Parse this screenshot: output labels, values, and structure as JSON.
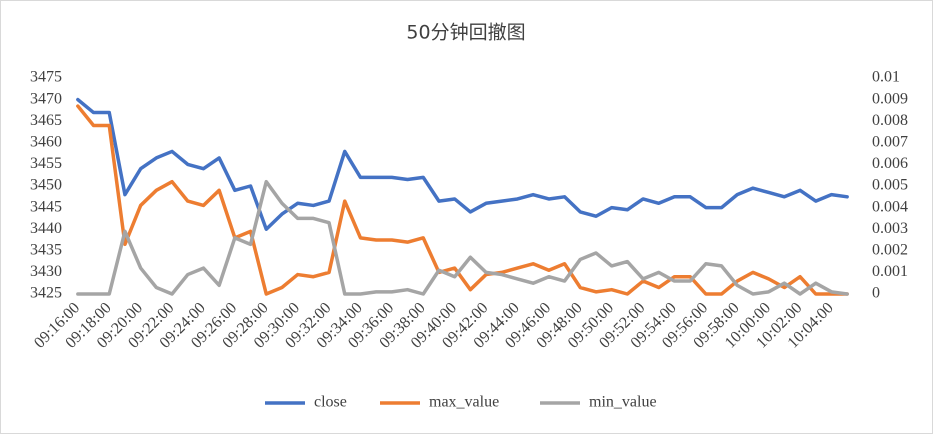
{
  "chart_data": {
    "type": "line",
    "title": "50分钟回撤图",
    "categories": [
      "09:16:00",
      null,
      "09:18:00",
      null,
      "09:20:00",
      null,
      "09:22:00",
      null,
      "09:24:00",
      null,
      "09:26:00",
      null,
      "09:28:00",
      null,
      "09:30:00",
      null,
      "09:32:00",
      null,
      "09:34:00",
      null,
      "09:36:00",
      null,
      "09:38:00",
      null,
      "09:40:00",
      null,
      "09:42:00",
      null,
      "09:44:00",
      null,
      "09:46:00",
      null,
      "09:48:00",
      null,
      "09:50:00",
      null,
      "09:52:00",
      null,
      "09:54:00",
      null,
      "09:56:00",
      null,
      "09:58:00",
      null,
      "10:00:00",
      null,
      "10:02:00",
      null,
      "10:04:00",
      null
    ],
    "series": [
      {
        "name": "close",
        "color": "#4472c4",
        "values": [
          3470,
          3467,
          3467,
          3448,
          3454,
          3456.5,
          3458,
          3455,
          3454,
          3456.5,
          3449,
          3450,
          3440,
          3443.5,
          3446,
          3445.5,
          3446.5,
          3458,
          3452,
          3452,
          3452,
          3451.5,
          3452,
          3446.5,
          3447,
          3444,
          3446,
          3446.5,
          3447,
          3448,
          3447,
          3447.5,
          3444,
          3443,
          3445,
          3444.5,
          3447,
          3446,
          3447.5,
          3447.5,
          3445,
          3445,
          3448,
          3449.5,
          3448.5,
          3447.5,
          3449,
          3446.5,
          3448,
          3447.5
        ]
      },
      {
        "name": "max_value",
        "color": "#ed7d31",
        "values": [
          3468.5,
          3464,
          3464,
          3436.5,
          3445.5,
          3449,
          3451,
          3446.5,
          3445.5,
          3449,
          3438,
          3439.5,
          3425,
          3426.5,
          3429.5,
          3429,
          3430,
          3446.5,
          3438,
          3437.5,
          3437.5,
          3437,
          3438,
          3430,
          3431,
          3426,
          3429.5,
          3430,
          3431,
          3432,
          3430.5,
          3432,
          3426.5,
          3425.5,
          3426,
          3425,
          3428,
          3426.5,
          3429,
          3429,
          3425,
          3425,
          3428,
          3430,
          3428.5,
          3426.5,
          3429,
          3425,
          3425,
          3425
        ]
      },
      {
        "name": "min_value",
        "color": "#a5a5a5",
        "axis": "y2",
        "values": [
          0,
          0,
          0,
          0.0029,
          0.0012,
          0.0003,
          0,
          0.0009,
          0.0012,
          0.0004,
          0.0026,
          0.0023,
          0.0052,
          0.0042,
          0.0035,
          0.0035,
          0.0033,
          0,
          0,
          0.0001,
          0.0001,
          0.0002,
          0,
          0.0011,
          0.0008,
          0.0017,
          0.001,
          0.0009,
          0.0007,
          0.0005,
          0.0008,
          0.0006,
          0.0016,
          0.0019,
          0.0013,
          0.0015,
          0.0007,
          0.001,
          0.0006,
          0.0006,
          0.0014,
          0.0013,
          0.0004,
          0,
          0.0001,
          0.0005,
          0,
          0.0005,
          0.0001,
          0
        ]
      }
    ],
    "ylim": [
      3425,
      3475
    ],
    "yticks": [
      3425,
      3430,
      3435,
      3440,
      3445,
      3450,
      3455,
      3460,
      3465,
      3470,
      3475
    ],
    "y2lim": [
      0,
      0.01
    ],
    "y2ticks": [
      0,
      0.001,
      0.002,
      0.003,
      0.004,
      0.005,
      0.006,
      0.007,
      0.008,
      0.009,
      0.01
    ],
    "legend": "bottom"
  }
}
